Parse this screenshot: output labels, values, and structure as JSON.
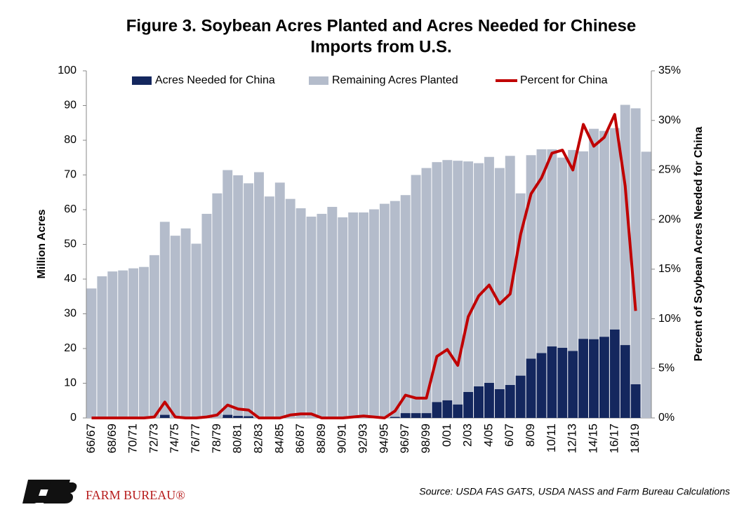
{
  "chart_data": {
    "type": "bar",
    "title": [
      "Figure 3. Soybean Acres Planted and Acres Needed for Chinese",
      "Imports from U.S."
    ],
    "ylabel": "Million Acres",
    "y2label": "Percent of Soybean Acres Needed for China",
    "source": "Source: USDA FAS GATS, USDA NASS and Farm Bureau Calculations",
    "logo_text": "FARM BUREAU®",
    "stacked": true,
    "categories": [
      "66/67",
      null,
      "68/69",
      null,
      "70/71",
      null,
      "72/73",
      null,
      "74/75",
      null,
      "76/77",
      null,
      "78/79",
      null,
      "80/81",
      null,
      "82/83",
      null,
      "84/85",
      null,
      "86/87",
      null,
      "88/89",
      null,
      "90/91",
      null,
      "92/93",
      null,
      "94/95",
      null,
      "96/97",
      null,
      "98/99",
      null,
      "0/01",
      null,
      "2/03",
      null,
      "4/05",
      null,
      "6/07",
      null,
      "8/09",
      null,
      "10/11",
      null,
      "12/13",
      null,
      "14/15",
      null,
      "16/17",
      null,
      "18/19",
      null
    ],
    "series": [
      {
        "name": "Acres Needed for China",
        "color": "#14275e",
        "values": [
          0,
          0,
          0,
          0,
          0,
          0,
          0,
          0.9,
          0,
          0,
          0,
          0,
          0,
          0.9,
          0.6,
          0.5,
          0,
          0,
          0,
          0,
          0,
          0,
          0,
          0,
          0,
          0,
          0,
          0,
          0,
          0.3,
          1.4,
          1.4,
          1.4,
          4.6,
          5.1,
          3.9,
          7.5,
          9.1,
          10.1,
          8.3,
          9.5,
          12.2,
          17.1,
          18.7,
          20.6,
          20.2,
          19.3,
          22.8,
          22.7,
          23.4,
          25.5,
          21.0,
          9.7,
          null
        ]
      },
      {
        "name": "Remaining Acres Planted",
        "color": "#b4bccb",
        "values": [
          37.3,
          40.8,
          42.2,
          42.5,
          43.1,
          43.5,
          46.9,
          55.6,
          52.5,
          54.6,
          50.2,
          58.8,
          64.7,
          70.5,
          69.3,
          67.1,
          70.8,
          63.8,
          67.8,
          63.1,
          60.4,
          58.0,
          58.8,
          60.8,
          57.8,
          59.2,
          59.2,
          60.1,
          61.7,
          62.2,
          62.8,
          68.6,
          70.6,
          69.1,
          69.2,
          70.2,
          66.4,
          64.3,
          65.1,
          63.7,
          66.0,
          52.5,
          58.6,
          58.7,
          56.8,
          54.8,
          57.9,
          54.0,
          60.6,
          59.3,
          58.0,
          69.2,
          79.5,
          76.7
        ]
      },
      {
        "name": "Percent for China",
        "color": "#c00000",
        "type": "line",
        "axis": "y2",
        "values": [
          0,
          0,
          0,
          0,
          0,
          0,
          0.1,
          1.6,
          0.1,
          0,
          0,
          0.1,
          0.3,
          1.3,
          0.9,
          0.8,
          0,
          0,
          0,
          0.3,
          0.4,
          0.4,
          0,
          0,
          0,
          0.1,
          0.2,
          0.1,
          0,
          0.7,
          2.3,
          2.0,
          2.0,
          6.2,
          6.9,
          5.3,
          10.2,
          12.3,
          13.4,
          11.5,
          12.5,
          18.5,
          22.6,
          24.2,
          26.7,
          27.0,
          25.0,
          29.6,
          27.4,
          28.3,
          30.6,
          23.4,
          10.8,
          null
        ]
      }
    ],
    "ylim": [
      0,
      100
    ],
    "yticks": [
      0,
      10,
      20,
      30,
      40,
      50,
      60,
      70,
      80,
      90,
      100
    ],
    "y2lim": [
      0,
      35
    ],
    "y2ticks": [
      {
        "value": 0,
        "label": "0%"
      },
      {
        "value": 5,
        "label": "5%"
      },
      {
        "value": 10,
        "label": "10%"
      },
      {
        "value": 15,
        "label": "15%"
      },
      {
        "value": 20,
        "label": "20%"
      },
      {
        "value": 25,
        "label": "25%"
      },
      {
        "value": 30,
        "label": "30%"
      },
      {
        "value": 35,
        "label": "35%"
      }
    ],
    "legend": "top",
    "grid": false
  }
}
